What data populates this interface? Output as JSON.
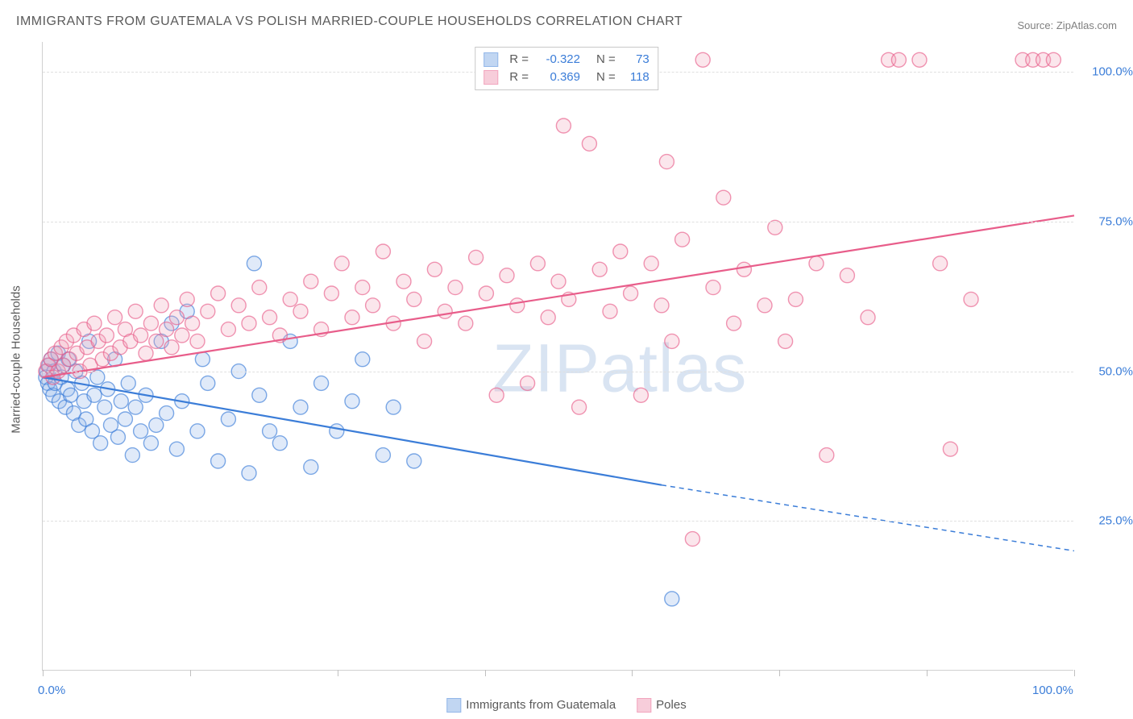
{
  "title": "IMMIGRANTS FROM GUATEMALA VS POLISH MARRIED-COUPLE HOUSEHOLDS CORRELATION CHART",
  "source_label": "Source: ZipAtlas.com",
  "watermark": "ZIPatlas",
  "y_axis_label": "Married-couple Households",
  "chart": {
    "type": "scatter",
    "xlim": [
      0,
      100
    ],
    "ylim": [
      0,
      105
    ],
    "x_ticks": [
      0,
      14.3,
      28.6,
      42.9,
      57.1,
      71.4,
      85.7,
      100
    ],
    "x_tick_labels": {
      "0": "0.0%",
      "100": "100.0%"
    },
    "y_grid": [
      25,
      50,
      75,
      100
    ],
    "y_tick_labels": {
      "25": "25.0%",
      "50": "50.0%",
      "75": "75.0%",
      "100": "100.0%"
    },
    "background_color": "#ffffff",
    "grid_color": "#e0e0e0",
    "marker_radius": 9,
    "marker_stroke_width": 1.4,
    "marker_fill_opacity": 0.28,
    "line_width": 2.2,
    "series": [
      {
        "id": "guatemala",
        "label": "Immigrants from Guatemala",
        "color": "#3b7dd8",
        "fill": "#8fb5e8",
        "R": "-0.322",
        "N": "73",
        "trend": {
          "x1": 0,
          "y1": 49,
          "x2": 60,
          "y2": 31,
          "x2_ext": 100,
          "y2_ext": 20
        },
        "points": [
          [
            0.3,
            49
          ],
          [
            0.4,
            50
          ],
          [
            0.5,
            48
          ],
          [
            0.6,
            51
          ],
          [
            0.7,
            47
          ],
          [
            0.8,
            52
          ],
          [
            1.0,
            46
          ],
          [
            1.1,
            50
          ],
          [
            1.2,
            48
          ],
          [
            1.5,
            53
          ],
          [
            1.6,
            45
          ],
          [
            1.8,
            49
          ],
          [
            2.0,
            51
          ],
          [
            2.2,
            44
          ],
          [
            2.4,
            47
          ],
          [
            2.5,
            52
          ],
          [
            2.7,
            46
          ],
          [
            3.0,
            43
          ],
          [
            3.2,
            50
          ],
          [
            3.5,
            41
          ],
          [
            3.8,
            48
          ],
          [
            4.0,
            45
          ],
          [
            4.2,
            42
          ],
          [
            4.5,
            55
          ],
          [
            4.8,
            40
          ],
          [
            5.0,
            46
          ],
          [
            5.3,
            49
          ],
          [
            5.6,
            38
          ],
          [
            6.0,
            44
          ],
          [
            6.3,
            47
          ],
          [
            6.6,
            41
          ],
          [
            7.0,
            52
          ],
          [
            7.3,
            39
          ],
          [
            7.6,
            45
          ],
          [
            8.0,
            42
          ],
          [
            8.3,
            48
          ],
          [
            8.7,
            36
          ],
          [
            9.0,
            44
          ],
          [
            9.5,
            40
          ],
          [
            10.0,
            46
          ],
          [
            10.5,
            38
          ],
          [
            11.0,
            41
          ],
          [
            11.5,
            55
          ],
          [
            12.0,
            43
          ],
          [
            12.5,
            58
          ],
          [
            13.0,
            37
          ],
          [
            13.5,
            45
          ],
          [
            14.0,
            60
          ],
          [
            15.0,
            40
          ],
          [
            15.5,
            52
          ],
          [
            16.0,
            48
          ],
          [
            17.0,
            35
          ],
          [
            18.0,
            42
          ],
          [
            19.0,
            50
          ],
          [
            20.0,
            33
          ],
          [
            20.5,
            68
          ],
          [
            21.0,
            46
          ],
          [
            22.0,
            40
          ],
          [
            23.0,
            38
          ],
          [
            24.0,
            55
          ],
          [
            25.0,
            44
          ],
          [
            26.0,
            34
          ],
          [
            27.0,
            48
          ],
          [
            28.5,
            40
          ],
          [
            30.0,
            45
          ],
          [
            31.0,
            52
          ],
          [
            33.0,
            36
          ],
          [
            34.0,
            44
          ],
          [
            36.0,
            35
          ],
          [
            61.0,
            12
          ]
        ]
      },
      {
        "id": "poles",
        "label": "Poles",
        "color": "#e85d8a",
        "fill": "#f2a6bc",
        "R": "0.369",
        "N": "118",
        "trend": {
          "x1": 0,
          "y1": 49,
          "x2": 100,
          "y2": 76
        },
        "points": [
          [
            0.3,
            50
          ],
          [
            0.5,
            51
          ],
          [
            0.8,
            52
          ],
          [
            1.0,
            49
          ],
          [
            1.2,
            53
          ],
          [
            1.5,
            50
          ],
          [
            1.8,
            54
          ],
          [
            2.0,
            51
          ],
          [
            2.3,
            55
          ],
          [
            2.6,
            52
          ],
          [
            3.0,
            56
          ],
          [
            3.3,
            53
          ],
          [
            3.6,
            50
          ],
          [
            4.0,
            57
          ],
          [
            4.3,
            54
          ],
          [
            4.6,
            51
          ],
          [
            5.0,
            58
          ],
          [
            5.4,
            55
          ],
          [
            5.8,
            52
          ],
          [
            6.2,
            56
          ],
          [
            6.6,
            53
          ],
          [
            7.0,
            59
          ],
          [
            7.5,
            54
          ],
          [
            8.0,
            57
          ],
          [
            8.5,
            55
          ],
          [
            9.0,
            60
          ],
          [
            9.5,
            56
          ],
          [
            10.0,
            53
          ],
          [
            10.5,
            58
          ],
          [
            11.0,
            55
          ],
          [
            11.5,
            61
          ],
          [
            12.0,
            57
          ],
          [
            12.5,
            54
          ],
          [
            13.0,
            59
          ],
          [
            13.5,
            56
          ],
          [
            14.0,
            62
          ],
          [
            14.5,
            58
          ],
          [
            15.0,
            55
          ],
          [
            16.0,
            60
          ],
          [
            17.0,
            63
          ],
          [
            18.0,
            57
          ],
          [
            19.0,
            61
          ],
          [
            20.0,
            58
          ],
          [
            21.0,
            64
          ],
          [
            22.0,
            59
          ],
          [
            23.0,
            56
          ],
          [
            24.0,
            62
          ],
          [
            25.0,
            60
          ],
          [
            26.0,
            65
          ],
          [
            27.0,
            57
          ],
          [
            28.0,
            63
          ],
          [
            29.0,
            68
          ],
          [
            30.0,
            59
          ],
          [
            31.0,
            64
          ],
          [
            32.0,
            61
          ],
          [
            33.0,
            70
          ],
          [
            34.0,
            58
          ],
          [
            35.0,
            65
          ],
          [
            36.0,
            62
          ],
          [
            37.0,
            55
          ],
          [
            38.0,
            67
          ],
          [
            39.0,
            60
          ],
          [
            40.0,
            64
          ],
          [
            41.0,
            58
          ],
          [
            42.0,
            69
          ],
          [
            43.0,
            63
          ],
          [
            44.0,
            46
          ],
          [
            45.0,
            66
          ],
          [
            46.0,
            61
          ],
          [
            47.0,
            48
          ],
          [
            48.0,
            68
          ],
          [
            49.0,
            59
          ],
          [
            50.0,
            65
          ],
          [
            50.5,
            91
          ],
          [
            51.0,
            62
          ],
          [
            52.0,
            44
          ],
          [
            53.0,
            88
          ],
          [
            54.0,
            67
          ],
          [
            55.0,
            60
          ],
          [
            56.0,
            70
          ],
          [
            57.0,
            63
          ],
          [
            58.0,
            46
          ],
          [
            59.0,
            68
          ],
          [
            60.0,
            61
          ],
          [
            60.5,
            85
          ],
          [
            61.0,
            55
          ],
          [
            62.0,
            72
          ],
          [
            63.0,
            22
          ],
          [
            64.0,
            102
          ],
          [
            65.0,
            64
          ],
          [
            66.0,
            79
          ],
          [
            67.0,
            58
          ],
          [
            68.0,
            67
          ],
          [
            70.0,
            61
          ],
          [
            71.0,
            74
          ],
          [
            72.0,
            55
          ],
          [
            73.0,
            62
          ],
          [
            75.0,
            68
          ],
          [
            76.0,
            36
          ],
          [
            78.0,
            66
          ],
          [
            80.0,
            59
          ],
          [
            82.0,
            102
          ],
          [
            83.0,
            102
          ],
          [
            85.0,
            102
          ],
          [
            87.0,
            68
          ],
          [
            88.0,
            37
          ],
          [
            90.0,
            62
          ],
          [
            95.0,
            102
          ],
          [
            96.0,
            102
          ],
          [
            97.0,
            102
          ],
          [
            98.0,
            102
          ]
        ]
      }
    ]
  },
  "bottom_legend": [
    {
      "label": "Immigrants from Guatemala",
      "color": "#3b7dd8",
      "fill": "#8fb5e8"
    },
    {
      "label": "Poles",
      "color": "#e85d8a",
      "fill": "#f2a6bc"
    }
  ]
}
